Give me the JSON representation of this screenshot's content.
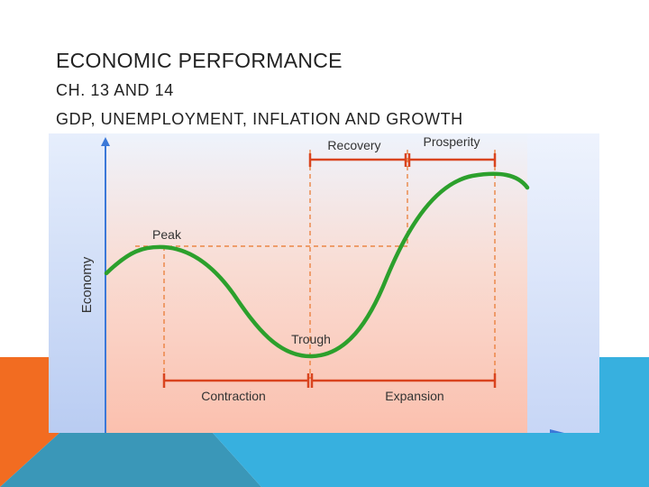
{
  "slide": {
    "title": "ECONOMIC PERFORMANCE",
    "subtitle_line1": "CH. 13 AND 14",
    "subtitle_line2": "GDP, UNEMPLOYMENT, INFLATION AND GROWTH"
  },
  "diagram": {
    "y_axis_label": "Economy",
    "labels": {
      "peak": "Peak",
      "trough": "Trough",
      "recovery": "Recovery",
      "prosperity": "Prosperity",
      "contraction": "Contraction",
      "expansion": "Expansion"
    },
    "colors": {
      "curve": "#2ca02c",
      "guides": "#e8752a",
      "brackets": "#d9441f",
      "axis": "#3b78d8",
      "bg_top": "#dfe9fb",
      "bg_bottom": "#fbc3b3"
    }
  },
  "decor": {
    "orange": "#f26c21",
    "blue_dark": "#3a97b8",
    "blue_light": "#37b0df"
  }
}
